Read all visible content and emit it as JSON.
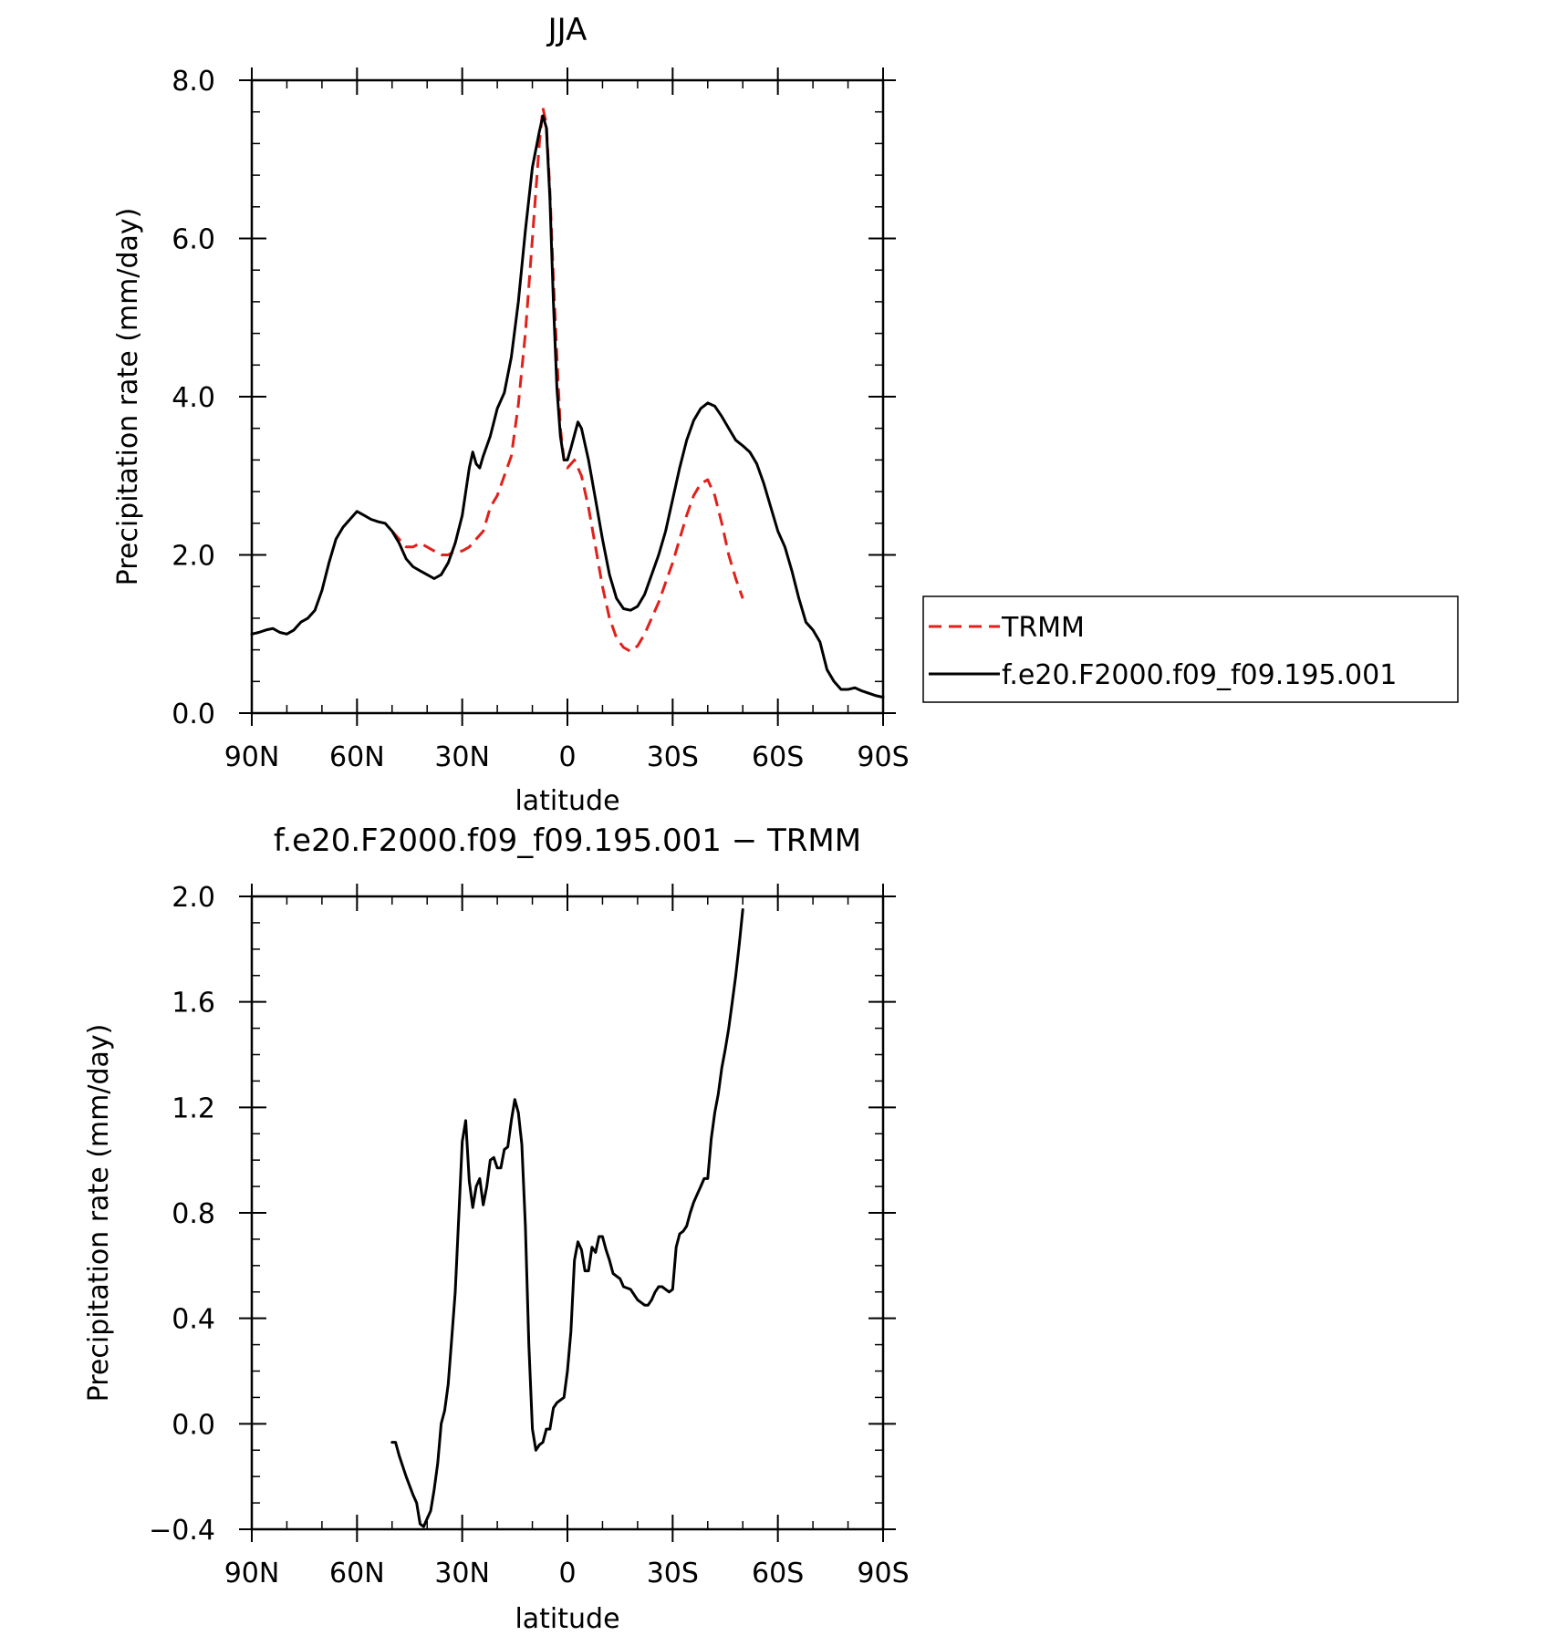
{
  "chart_data": [
    {
      "type": "line",
      "title": "JJA",
      "xlabel": "latitude",
      "ylabel": "Precipitation rate (mm/day)",
      "xlim": [
        90,
        -90
      ],
      "ylim": [
        0,
        8
      ],
      "x_ticks": [
        {
          "value": 90,
          "label": "90N"
        },
        {
          "value": 60,
          "label": "60N"
        },
        {
          "value": 30,
          "label": "30N"
        },
        {
          "value": 0,
          "label": "0"
        },
        {
          "value": -30,
          "label": "30S"
        },
        {
          "value": -60,
          "label": "60S"
        },
        {
          "value": -90,
          "label": "90S"
        }
      ],
      "y_ticks": [
        {
          "value": 0,
          "label": "0.0"
        },
        {
          "value": 2,
          "label": "2.0"
        },
        {
          "value": 4,
          "label": "4.0"
        },
        {
          "value": 6,
          "label": "6.0"
        },
        {
          "value": 8,
          "label": "8.0"
        }
      ],
      "legend_position": "right",
      "series": [
        {
          "name": "TRMM",
          "color": "#e0201a",
          "dash": "dashed",
          "points": [
            [
              50,
              2.3
            ],
            [
              46,
              2.1
            ],
            [
              44,
              2.1
            ],
            [
              42,
              2.15
            ],
            [
              40,
              2.1
            ],
            [
              38,
              2.05
            ],
            [
              36,
              2.0
            ],
            [
              34,
              2.0
            ],
            [
              32,
              2.05
            ],
            [
              30,
              2.05
            ],
            [
              28,
              2.1
            ],
            [
              26,
              2.2
            ],
            [
              24,
              2.3
            ],
            [
              22,
              2.6
            ],
            [
              20,
              2.75
            ],
            [
              18,
              3.0
            ],
            [
              16,
              3.25
            ],
            [
              14,
              3.9
            ],
            [
              12,
              4.8
            ],
            [
              10,
              6.0
            ],
            [
              8,
              7.2
            ],
            [
              7,
              7.65
            ],
            [
              6,
              7.45
            ],
            [
              5,
              6.6
            ],
            [
              4,
              5.5
            ],
            [
              3,
              4.5
            ],
            [
              2,
              3.6
            ],
            [
              1,
              3.2
            ],
            [
              0,
              3.1
            ],
            [
              -2,
              3.2
            ],
            [
              -4,
              3.0
            ],
            [
              -6,
              2.6
            ],
            [
              -8,
              2.1
            ],
            [
              -10,
              1.6
            ],
            [
              -12,
              1.2
            ],
            [
              -14,
              0.95
            ],
            [
              -16,
              0.83
            ],
            [
              -18,
              0.78
            ],
            [
              -20,
              0.85
            ],
            [
              -22,
              1.0
            ],
            [
              -24,
              1.2
            ],
            [
              -26,
              1.4
            ],
            [
              -28,
              1.65
            ],
            [
              -30,
              1.9
            ],
            [
              -32,
              2.2
            ],
            [
              -34,
              2.5
            ],
            [
              -36,
              2.75
            ],
            [
              -38,
              2.9
            ],
            [
              -40,
              2.95
            ],
            [
              -42,
              2.75
            ],
            [
              -44,
              2.4
            ],
            [
              -46,
              2.0
            ],
            [
              -48,
              1.7
            ],
            [
              -50,
              1.45
            ]
          ]
        },
        {
          "name": "f.e20.F2000.f09_f09.195.001",
          "color": "#000000",
          "dash": "solid",
          "points": [
            [
              90,
              1.0
            ],
            [
              88,
              1.02
            ],
            [
              86,
              1.05
            ],
            [
              84,
              1.07
            ],
            [
              82,
              1.02
            ],
            [
              80,
              1.0
            ],
            [
              78,
              1.05
            ],
            [
              76,
              1.15
            ],
            [
              74,
              1.2
            ],
            [
              72,
              1.3
            ],
            [
              70,
              1.55
            ],
            [
              68,
              1.9
            ],
            [
              66,
              2.2
            ],
            [
              64,
              2.35
            ],
            [
              62,
              2.45
            ],
            [
              60,
              2.55
            ],
            [
              58,
              2.5
            ],
            [
              56,
              2.45
            ],
            [
              54,
              2.42
            ],
            [
              52,
              2.4
            ],
            [
              50,
              2.3
            ],
            [
              48,
              2.15
            ],
            [
              46,
              1.95
            ],
            [
              44,
              1.85
            ],
            [
              42,
              1.8
            ],
            [
              40,
              1.75
            ],
            [
              38,
              1.7
            ],
            [
              36,
              1.75
            ],
            [
              34,
              1.9
            ],
            [
              32,
              2.15
            ],
            [
              30,
              2.5
            ],
            [
              28,
              3.1
            ],
            [
              27,
              3.3
            ],
            [
              26,
              3.15
            ],
            [
              25,
              3.1
            ],
            [
              24,
              3.25
            ],
            [
              22,
              3.5
            ],
            [
              20,
              3.85
            ],
            [
              18,
              4.05
            ],
            [
              16,
              4.5
            ],
            [
              14,
              5.2
            ],
            [
              12,
              6.1
            ],
            [
              10,
              6.9
            ],
            [
              8,
              7.35
            ],
            [
              7,
              7.55
            ],
            [
              6,
              7.4
            ],
            [
              5,
              6.5
            ],
            [
              4,
              5.2
            ],
            [
              3,
              4.1
            ],
            [
              2,
              3.5
            ],
            [
              1,
              3.2
            ],
            [
              0,
              3.2
            ],
            [
              -1,
              3.35
            ],
            [
              -3,
              3.68
            ],
            [
              -4,
              3.6
            ],
            [
              -6,
              3.2
            ],
            [
              -8,
              2.7
            ],
            [
              -10,
              2.2
            ],
            [
              -12,
              1.75
            ],
            [
              -14,
              1.45
            ],
            [
              -16,
              1.32
            ],
            [
              -18,
              1.3
            ],
            [
              -20,
              1.35
            ],
            [
              -22,
              1.5
            ],
            [
              -24,
              1.75
            ],
            [
              -26,
              2.0
            ],
            [
              -28,
              2.3
            ],
            [
              -30,
              2.7
            ],
            [
              -32,
              3.1
            ],
            [
              -34,
              3.45
            ],
            [
              -36,
              3.7
            ],
            [
              -38,
              3.85
            ],
            [
              -40,
              3.92
            ],
            [
              -42,
              3.88
            ],
            [
              -44,
              3.75
            ],
            [
              -46,
              3.6
            ],
            [
              -48,
              3.45
            ],
            [
              -50,
              3.38
            ],
            [
              -52,
              3.3
            ],
            [
              -54,
              3.15
            ],
            [
              -56,
              2.9
            ],
            [
              -58,
              2.6
            ],
            [
              -60,
              2.3
            ],
            [
              -62,
              2.1
            ],
            [
              -64,
              1.8
            ],
            [
              -66,
              1.45
            ],
            [
              -68,
              1.15
            ],
            [
              -70,
              1.05
            ],
            [
              -72,
              0.9
            ],
            [
              -74,
              0.55
            ],
            [
              -76,
              0.4
            ],
            [
              -78,
              0.3
            ],
            [
              -80,
              0.3
            ],
            [
              -82,
              0.32
            ],
            [
              -84,
              0.28
            ],
            [
              -86,
              0.25
            ],
            [
              -88,
              0.22
            ],
            [
              -90,
              0.2
            ]
          ]
        }
      ]
    },
    {
      "type": "line",
      "title": "f.e20.F2000.f09_f09.195.001 − TRMM",
      "xlabel": "latitude",
      "ylabel": "Precipitation rate (mm/day)",
      "xlim": [
        90,
        -90
      ],
      "ylim": [
        -0.4,
        2.0
      ],
      "x_ticks": [
        {
          "value": 90,
          "label": "90N"
        },
        {
          "value": 60,
          "label": "60N"
        },
        {
          "value": 30,
          "label": "30N"
        },
        {
          "value": 0,
          "label": "0"
        },
        {
          "value": -30,
          "label": "30S"
        },
        {
          "value": -60,
          "label": "60S"
        },
        {
          "value": -90,
          "label": "90S"
        }
      ],
      "y_ticks": [
        {
          "value": -0.4,
          "label": "−0.4"
        },
        {
          "value": 0.0,
          "label": "0.0"
        },
        {
          "value": 0.4,
          "label": "0.4"
        },
        {
          "value": 0.8,
          "label": "0.8"
        },
        {
          "value": 1.2,
          "label": "1.2"
        },
        {
          "value": 1.6,
          "label": "1.6"
        },
        {
          "value": 2.0,
          "label": "2.0"
        }
      ],
      "series": [
        {
          "color": "#000000",
          "dash": "solid",
          "points": [
            [
              50,
              -0.07
            ],
            [
              49,
              -0.07
            ],
            [
              48,
              -0.12
            ],
            [
              46,
              -0.2
            ],
            [
              44,
              -0.27
            ],
            [
              43,
              -0.3
            ],
            [
              42,
              -0.38
            ],
            [
              41,
              -0.39
            ],
            [
              40,
              -0.36
            ],
            [
              39,
              -0.33
            ],
            [
              38,
              -0.25
            ],
            [
              37,
              -0.15
            ],
            [
              36,
              0.0
            ],
            [
              35,
              0.05
            ],
            [
              34,
              0.15
            ],
            [
              33,
              0.32
            ],
            [
              32,
              0.5
            ],
            [
              31,
              0.78
            ],
            [
              30,
              1.07
            ],
            [
              29,
              1.15
            ],
            [
              28,
              0.92
            ],
            [
              27,
              0.82
            ],
            [
              26,
              0.9
            ],
            [
              25,
              0.93
            ],
            [
              24,
              0.83
            ],
            [
              23,
              0.9
            ],
            [
              22,
              1.0
            ],
            [
              21,
              1.01
            ],
            [
              20,
              0.97
            ],
            [
              19,
              0.97
            ],
            [
              18,
              1.04
            ],
            [
              17,
              1.05
            ],
            [
              16,
              1.15
            ],
            [
              15,
              1.23
            ],
            [
              14,
              1.18
            ],
            [
              13,
              1.06
            ],
            [
              12,
              0.75
            ],
            [
              11,
              0.3
            ],
            [
              10,
              -0.02
            ],
            [
              9,
              -0.1
            ],
            [
              8,
              -0.08
            ],
            [
              7,
              -0.07
            ],
            [
              6,
              -0.02
            ],
            [
              5,
              -0.02
            ],
            [
              4,
              0.06
            ],
            [
              3,
              0.08
            ],
            [
              2,
              0.09
            ],
            [
              1,
              0.1
            ],
            [
              0,
              0.2
            ],
            [
              -1,
              0.35
            ],
            [
              -2,
              0.62
            ],
            [
              -3,
              0.69
            ],
            [
              -4,
              0.66
            ],
            [
              -5,
              0.58
            ],
            [
              -6,
              0.58
            ],
            [
              -7,
              0.67
            ],
            [
              -8,
              0.65
            ],
            [
              -9,
              0.71
            ],
            [
              -10,
              0.71
            ],
            [
              -11,
              0.66
            ],
            [
              -12,
              0.62
            ],
            [
              -13,
              0.57
            ],
            [
              -14,
              0.56
            ],
            [
              -15,
              0.55
            ],
            [
              -16,
              0.52
            ],
            [
              -18,
              0.51
            ],
            [
              -20,
              0.47
            ],
            [
              -22,
              0.45
            ],
            [
              -23,
              0.45
            ],
            [
              -24,
              0.47
            ],
            [
              -25,
              0.5
            ],
            [
              -26,
              0.52
            ],
            [
              -27,
              0.52
            ],
            [
              -28,
              0.51
            ],
            [
              -29,
              0.5
            ],
            [
              -30,
              0.51
            ],
            [
              -31,
              0.67
            ],
            [
              -32,
              0.72
            ],
            [
              -33,
              0.73
            ],
            [
              -34,
              0.75
            ],
            [
              -35,
              0.8
            ],
            [
              -36,
              0.84
            ],
            [
              -37,
              0.87
            ],
            [
              -38,
              0.9
            ],
            [
              -39,
              0.93
            ],
            [
              -40,
              0.93
            ],
            [
              -41,
              1.08
            ],
            [
              -42,
              1.18
            ],
            [
              -43,
              1.25
            ],
            [
              -44,
              1.35
            ],
            [
              -45,
              1.42
            ],
            [
              -46,
              1.5
            ],
            [
              -47,
              1.6
            ],
            [
              -48,
              1.7
            ],
            [
              -49,
              1.82
            ],
            [
              -50,
              1.95
            ]
          ]
        }
      ]
    }
  ]
}
